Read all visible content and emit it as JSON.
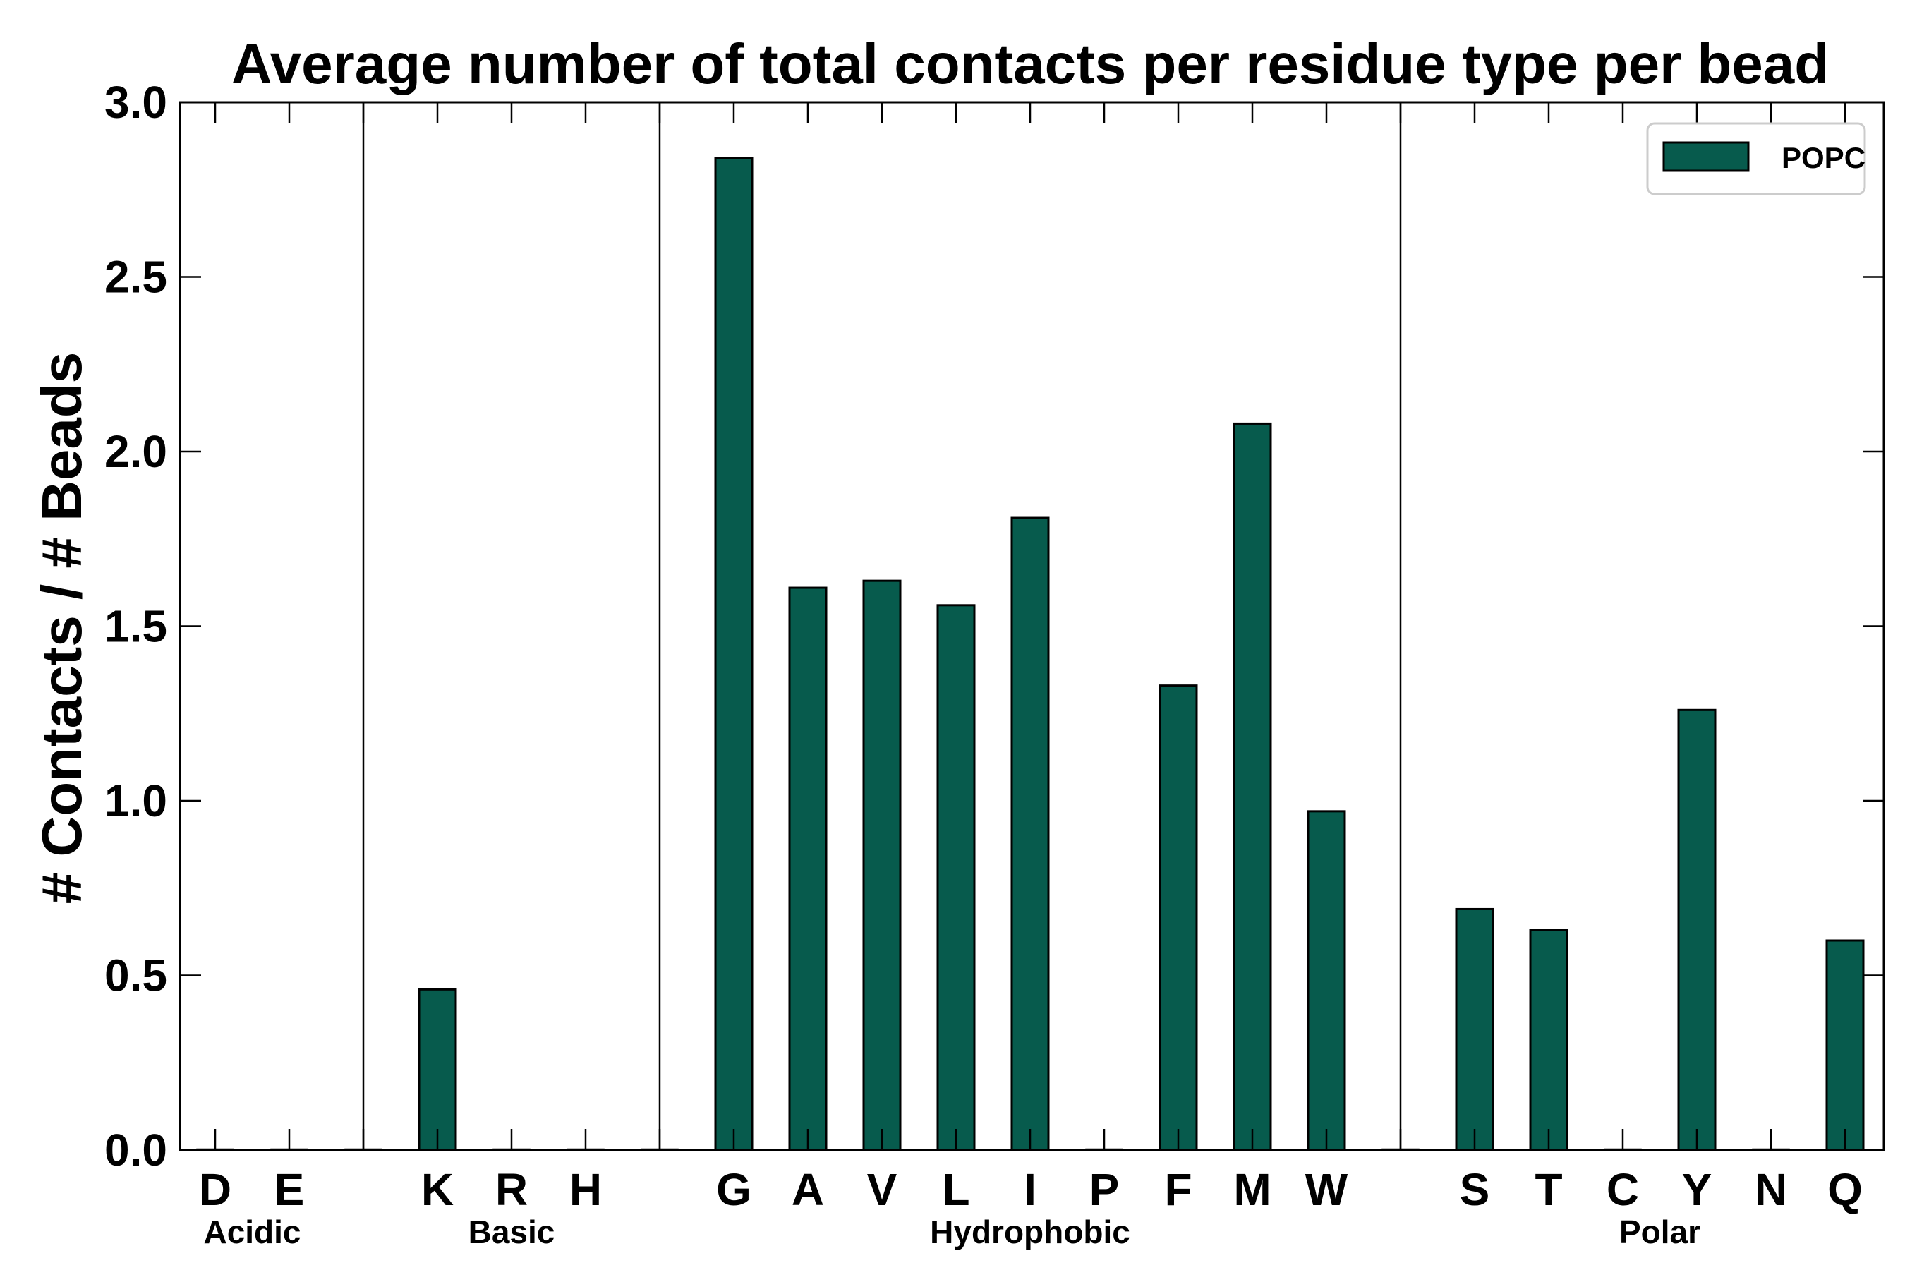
{
  "chart_data": {
    "type": "bar",
    "title": "Average number of total contacts per residue type per bead",
    "ylabel": "# Contacts / # Beads",
    "xlabel": "",
    "ylim": [
      0.0,
      3.0
    ],
    "yticks": [
      "0.0",
      "0.5",
      "1.0",
      "1.5",
      "2.0",
      "2.5",
      "3.0"
    ],
    "categories": [
      "D",
      "E",
      "",
      "K",
      "R",
      "H",
      "",
      "G",
      "A",
      "V",
      "L",
      "I",
      "P",
      "F",
      "M",
      "W",
      "",
      "S",
      "T",
      "C",
      "Y",
      "N",
      "Q"
    ],
    "series": [
      {
        "name": "POPC",
        "color": "#075b4d",
        "values": [
          0.0,
          0.0,
          0.0,
          0.46,
          0.0,
          0.0,
          0.0,
          2.84,
          1.61,
          1.63,
          1.56,
          1.81,
          0.0,
          1.33,
          2.08,
          0.97,
          0.0,
          0.69,
          0.63,
          0.0,
          1.26,
          0.0,
          0.6
        ]
      }
    ],
    "groups": [
      {
        "label": "Acidic",
        "start": 0,
        "end": 1
      },
      {
        "label": "Basic",
        "start": 3,
        "end": 5
      },
      {
        "label": "Hydrophobic",
        "start": 7,
        "end": 15
      },
      {
        "label": "Polar",
        "start": 17,
        "end": 22
      }
    ],
    "separators_after": [
      2,
      6,
      16
    ],
    "legend": "top-right",
    "grid": false
  }
}
